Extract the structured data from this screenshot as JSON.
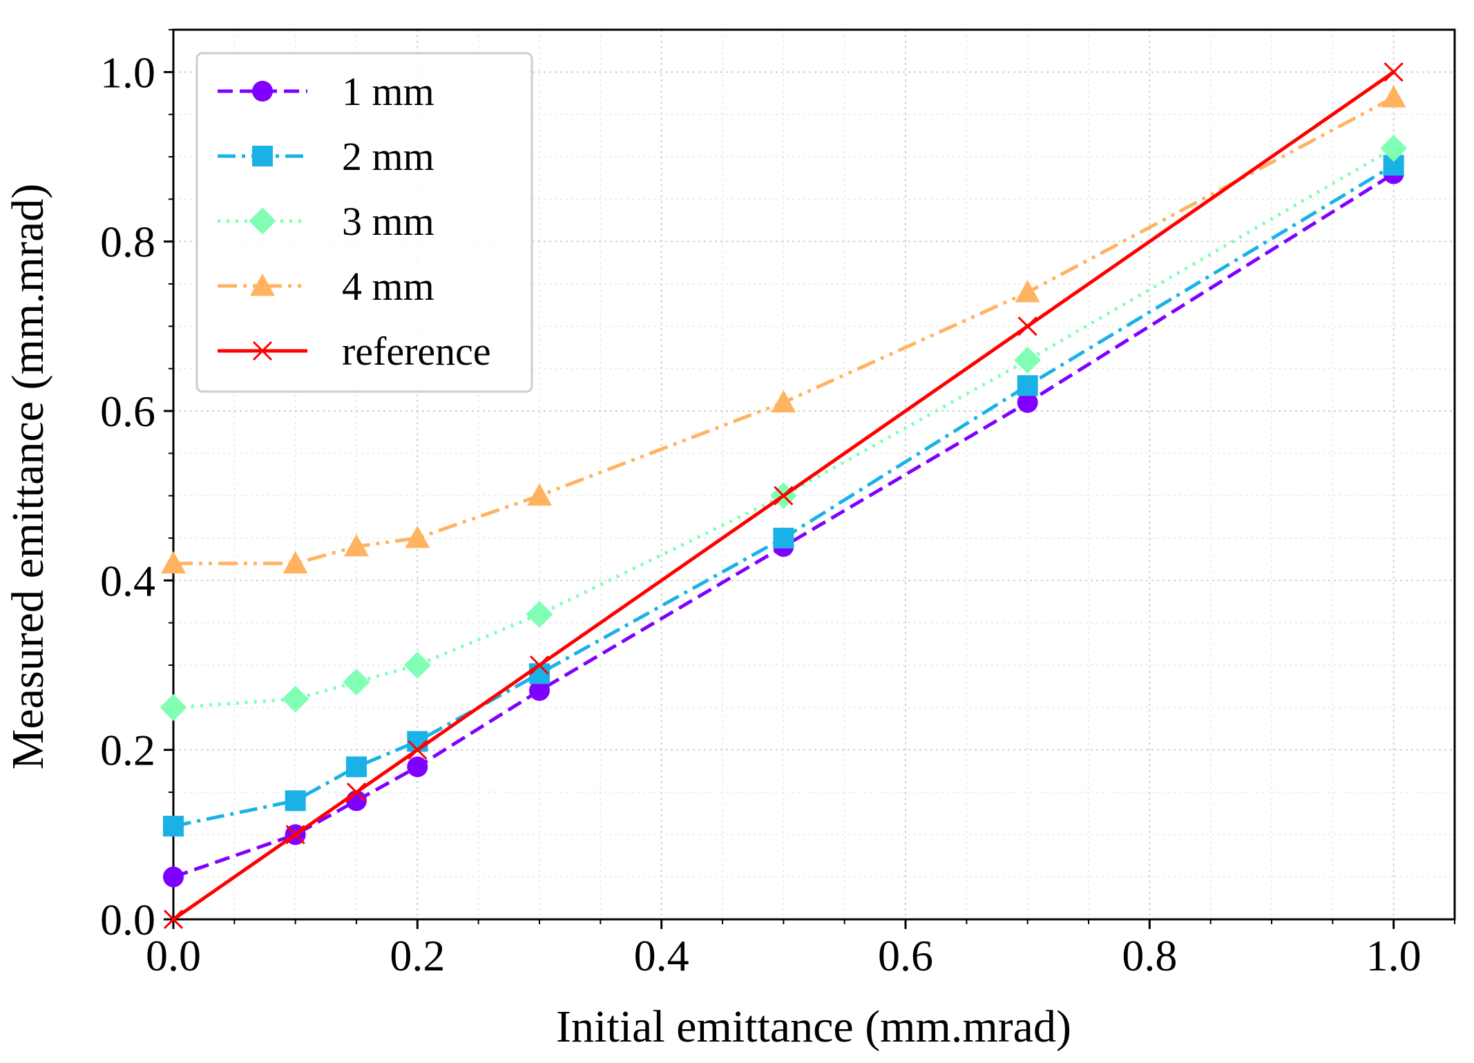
{
  "chart_data": {
    "type": "line",
    "xlabel": "Initial emittance (mm.mrad)",
    "ylabel": "Measured emittance (mm.mrad)",
    "xlim": [
      0.0,
      1.05
    ],
    "ylim": [
      0.0,
      1.05
    ],
    "xticks": [
      "0.0",
      "0.2",
      "0.4",
      "0.6",
      "0.8",
      "1.0"
    ],
    "yticks": [
      "0.0",
      "0.2",
      "0.4",
      "0.6",
      "0.8",
      "1.0"
    ],
    "grid": true,
    "legend_position": "top-left",
    "series": [
      {
        "name": "1 mm",
        "color": "#8000ff",
        "marker": "circle",
        "linestyle": "dashed",
        "x": [
          0.0,
          0.1,
          0.15,
          0.2,
          0.3,
          0.5,
          0.7,
          1.0
        ],
        "y": [
          0.05,
          0.1,
          0.14,
          0.18,
          0.27,
          0.44,
          0.61,
          0.88
        ]
      },
      {
        "name": "2 mm",
        "color": "#1ab2e6",
        "marker": "square",
        "linestyle": "dashdot",
        "x": [
          0.0,
          0.1,
          0.15,
          0.2,
          0.3,
          0.5,
          0.7,
          1.0
        ],
        "y": [
          0.11,
          0.14,
          0.18,
          0.21,
          0.29,
          0.45,
          0.63,
          0.89
        ]
      },
      {
        "name": "3 mm",
        "color": "#80ffb4",
        "marker": "diamond",
        "linestyle": "dotted",
        "x": [
          0.0,
          0.1,
          0.15,
          0.2,
          0.3,
          0.5,
          0.7,
          1.0
        ],
        "y": [
          0.25,
          0.26,
          0.28,
          0.3,
          0.36,
          0.5,
          0.66,
          0.91
        ]
      },
      {
        "name": "4 mm",
        "color": "#ffb360",
        "marker": "triangle",
        "linestyle": "dashdotdot",
        "x": [
          0.0,
          0.1,
          0.15,
          0.2,
          0.3,
          0.5,
          0.7,
          1.0
        ],
        "y": [
          0.42,
          0.42,
          0.44,
          0.45,
          0.5,
          0.61,
          0.74,
          0.97
        ]
      },
      {
        "name": "reference",
        "color": "#ff0000",
        "marker": "x",
        "linestyle": "solid",
        "x": [
          0.0,
          0.1,
          0.15,
          0.2,
          0.3,
          0.5,
          0.7,
          1.0
        ],
        "y": [
          0.0,
          0.1,
          0.15,
          0.2,
          0.3,
          0.5,
          0.7,
          1.0
        ]
      }
    ]
  }
}
